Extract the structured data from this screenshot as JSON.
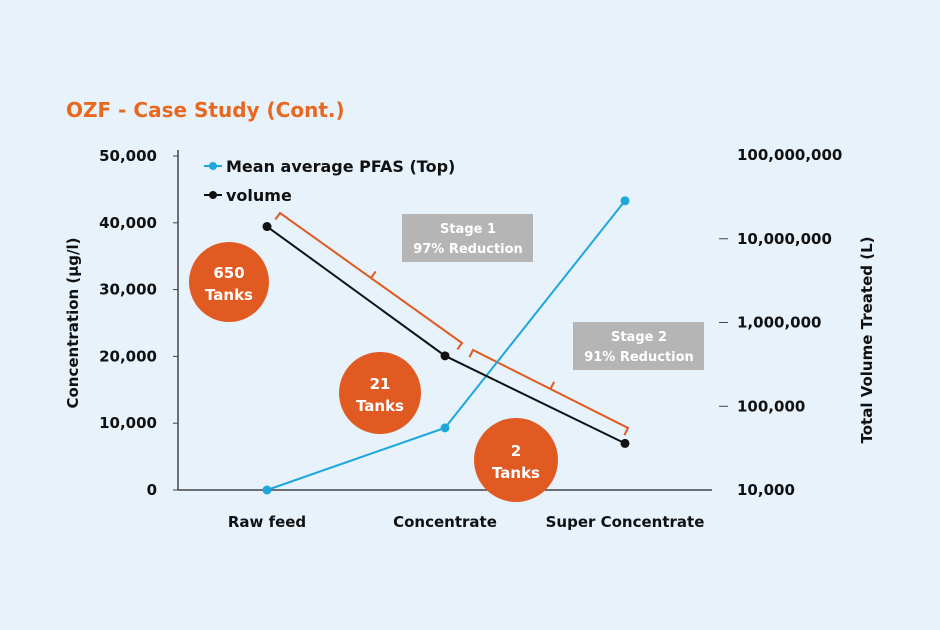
{
  "chart_data": {
    "type": "line",
    "title": "OZF - Case Study (Cont.)",
    "categories": [
      "Raw feed",
      "Concentrate",
      "Super Concentrate"
    ],
    "ylabel": "Concentration (µg/l)",
    "ylabel_right": "Total Volume Treated (L)",
    "ylim": [
      0,
      50000
    ],
    "ylim_right": [
      10000,
      100000000
    ],
    "y_right_scale": "log",
    "y_ticks": [
      "0",
      "10,000",
      "20,000",
      "30,000",
      "40,000",
      "50,000"
    ],
    "y_tick_values": [
      0,
      10000,
      20000,
      30000,
      40000,
      50000
    ],
    "y_right_ticks": [
      "10,000",
      "100,000",
      "1,000,000",
      "10,000,000",
      "100,000,000"
    ],
    "y_right_tick_values": [
      10000,
      100000,
      1000000,
      10000000,
      100000000
    ],
    "grid": false,
    "legend_position": "top-left",
    "series": [
      {
        "name": "Mean average PFAS (Top)",
        "axis": "left",
        "color": "#1ea7dd",
        "values": [
          0,
          9300,
          43300
        ]
      },
      {
        "name": "volume",
        "axis": "right",
        "color": "#111111",
        "values": [
          14000000,
          400000,
          36000
        ]
      }
    ],
    "annotations": {
      "tanks": [
        {
          "value": "650",
          "unit": "Tanks",
          "category": "Raw feed"
        },
        {
          "value": "21",
          "unit": "Tanks",
          "category": "Concentrate"
        },
        {
          "value": "2",
          "unit": "Tanks",
          "category": "Super Concentrate"
        }
      ],
      "stages": [
        {
          "line1": "Stage 1",
          "line2": "97% Reduction"
        },
        {
          "line1": "Stage 2",
          "line2": "91% Reduction"
        }
      ],
      "accent_color": "#e05a21",
      "box_color": "#b5b5b5"
    }
  }
}
